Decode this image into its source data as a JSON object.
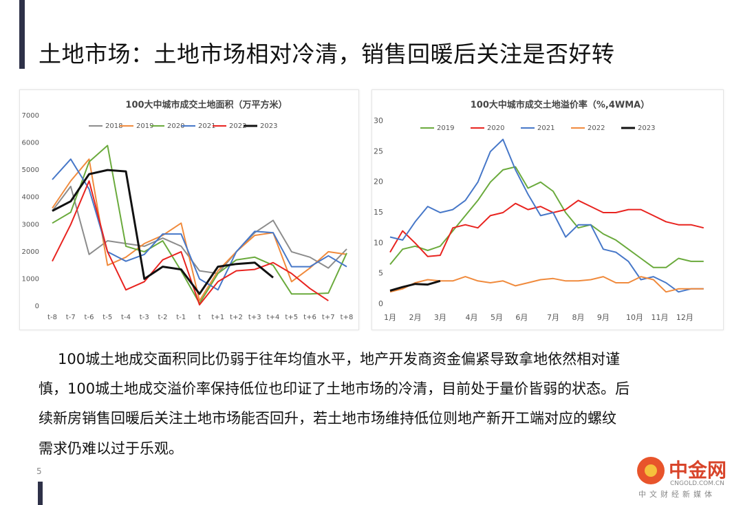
{
  "slide": {
    "title": "土地市场：土地市场相对冷清，销售回暖后关注是否好转",
    "paragraph": [
      "100城土地成交面积同比仍弱于往年均值水平，地产开发商资金偏紧导致拿地依然相对谨",
      "慎，100城土地成交溢价率保持低位也印证了土地市场的冷清，目前处于量价皆弱的状态。后",
      "续新房销售回暖后关注土地市场能否回升，若土地市场维持低位则地产新开工端对应的螺纹",
      "需求仍难以过于乐观。"
    ],
    "page_number": "5",
    "logo": {
      "name": "中金网",
      "url": "CNGOLD.COM.CN",
      "tagline": "中文财经新媒体"
    }
  },
  "chart_data": [
    {
      "type": "line",
      "title": "100大中城市成交土地面积（万平方米）",
      "categories": [
        "t-8",
        "t-7",
        "t-6",
        "t-5",
        "t-4",
        "t-3",
        "t-2",
        "t-1",
        "t",
        "t+1",
        "t+2",
        "t+3",
        "t+4",
        "t+5",
        "t+6",
        "t+7",
        "t+8"
      ],
      "ylim": [
        0,
        7000
      ],
      "yticks": [
        0,
        1000,
        2000,
        3000,
        4000,
        5000,
        6000,
        7000
      ],
      "grid": false,
      "legend": "top",
      "series": [
        {
          "name": "2018",
          "color": "#8c8c8c",
          "line_width": 2,
          "values": [
            3500,
            4400,
            1900,
            2400,
            2300,
            2200,
            2500,
            2200,
            1300,
            1200,
            2000,
            2700,
            3150,
            2000,
            1800,
            1400,
            2100
          ]
        },
        {
          "name": "2019",
          "color": "#f08a3c",
          "line_width": 2,
          "values": [
            3600,
            4600,
            5400,
            1500,
            1800,
            2300,
            2600,
            3050,
            200,
            1300,
            2000,
            2600,
            2700,
            900,
            1400,
            2000,
            1900
          ]
        },
        {
          "name": "2020",
          "color": "#6aaa3c",
          "line_width": 2,
          "values": [
            3050,
            3450,
            5300,
            5900,
            2200,
            2000,
            2400,
            1300,
            100,
            1200,
            1700,
            1800,
            1500,
            450,
            450,
            480,
            1950
          ]
        },
        {
          "name": "2021",
          "color": "#4677c8",
          "line_width": 2,
          "values": [
            4650,
            5400,
            4300,
            2000,
            1650,
            1900,
            2650,
            2650,
            1000,
            600,
            2000,
            2750,
            2700,
            1450,
            1450,
            1850,
            1450
          ]
        },
        {
          "name": "2022",
          "color": "#e8231f",
          "line_width": 2,
          "values": [
            1650,
            3000,
            4600,
            2000,
            600,
            900,
            1700,
            2000,
            50,
            900,
            1300,
            1350,
            1600,
            1200,
            650,
            200,
            null
          ]
        },
        {
          "name": "2023",
          "color": "#111111",
          "line_width": 3,
          "values": [
            3500,
            3850,
            4850,
            5000,
            4950,
            1000,
            1450,
            1350,
            450,
            1450,
            1550,
            1600,
            1050,
            null,
            null,
            null,
            null
          ]
        }
      ]
    },
    {
      "type": "line",
      "title": "100大中城市成交土地溢价率（%,4WMA）",
      "x": [
        1,
        3,
        5,
        7,
        9,
        11,
        13,
        15,
        17,
        19,
        21,
        23,
        25,
        27,
        29,
        31,
        33,
        35,
        37,
        39,
        41,
        43,
        45,
        47,
        49,
        51
      ],
      "xlim": [
        1,
        53
      ],
      "xticks": [
        {
          "value": 1,
          "label": "1月"
        },
        {
          "value": 5,
          "label": "2月"
        },
        {
          "value": 9,
          "label": "3月"
        },
        {
          "value": 14,
          "label": "4月"
        },
        {
          "value": 18,
          "label": "5月"
        },
        {
          "value": 22,
          "label": "6月"
        },
        {
          "value": 27,
          "label": "7月"
        },
        {
          "value": 31,
          "label": "8月"
        },
        {
          "value": 35,
          "label": "9月"
        },
        {
          "value": 40,
          "label": "10月"
        },
        {
          "value": 44,
          "label": "11月"
        },
        {
          "value": 48,
          "label": "12月"
        }
      ],
      "ylim": [
        0,
        30
      ],
      "yticks": [
        0,
        5,
        10,
        15,
        20,
        25,
        30
      ],
      "grid": false,
      "legend": "top",
      "series": [
        {
          "name": "2019",
          "color": "#6aaa3c",
          "line_width": 2,
          "values": [
            6.5,
            9,
            9.5,
            8.8,
            9.5,
            12,
            14.5,
            17,
            20,
            22,
            22.5,
            19,
            20,
            18.5,
            15,
            12.5,
            13,
            11.5,
            10.5,
            9,
            7.5,
            6,
            6,
            7.5,
            7,
            7
          ]
        },
        {
          "name": "2020",
          "color": "#e8231f",
          "line_width": 2,
          "values": [
            8.5,
            12,
            10,
            7.8,
            8,
            12.5,
            13,
            12.5,
            14.5,
            15,
            16.5,
            15.5,
            16,
            15,
            15.5,
            17,
            16,
            15,
            15,
            15.5,
            15.5,
            14.5,
            13.5,
            13,
            13,
            12.5
          ]
        },
        {
          "name": "2021",
          "color": "#4677c8",
          "line_width": 2,
          "values": [
            11,
            10.5,
            13.5,
            16,
            15,
            15.5,
            17,
            20,
            25,
            27,
            22,
            18,
            14.5,
            15,
            11,
            13,
            13,
            9,
            8.5,
            7,
            4,
            4.5,
            3.5,
            2,
            2.5,
            2.5
          ]
        },
        {
          "name": "2022",
          "color": "#f08a3c",
          "line_width": 2,
          "values": [
            2,
            2.5,
            3.5,
            4,
            3.8,
            3.8,
            4.5,
            3.8,
            3.5,
            3.8,
            3,
            3.5,
            4,
            4.2,
            3.8,
            3.8,
            4,
            4.5,
            3.5,
            3.5,
            4.5,
            4,
            2,
            2.5,
            2.5,
            2.5
          ]
        },
        {
          "name": "2023",
          "color": "#111111",
          "line_width": 3,
          "values": [
            2.2,
            2.8,
            3.3,
            3.2,
            3.8,
            null,
            null,
            null,
            null,
            null,
            null,
            null,
            null,
            null,
            null,
            null,
            null,
            null,
            null,
            null,
            null,
            null,
            null,
            null,
            null,
            null
          ]
        }
      ]
    }
  ]
}
